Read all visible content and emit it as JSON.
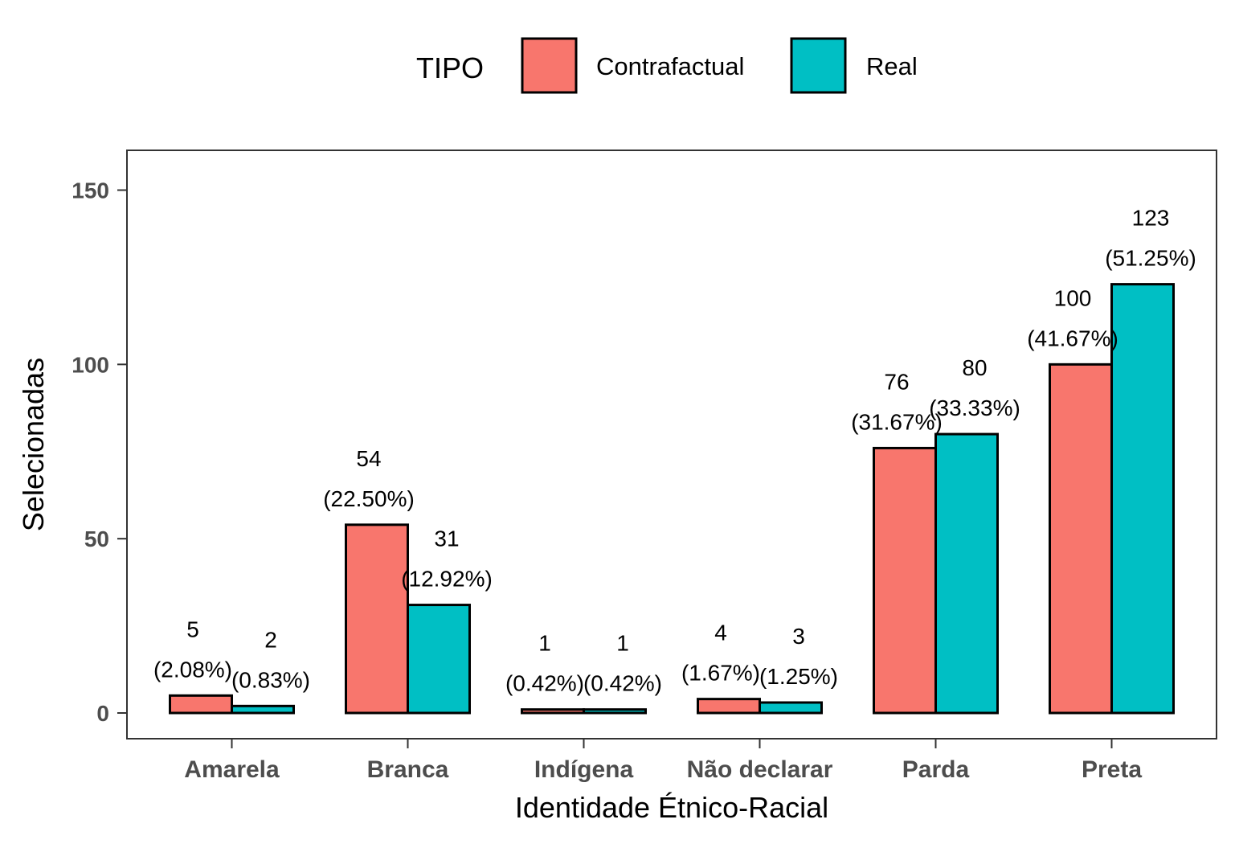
{
  "chart_data": {
    "type": "bar",
    "xlabel": "Identidade Étnico-Racial",
    "ylabel": "Selecionadas",
    "ylim": [
      0,
      160
    ],
    "yticks": [
      0,
      50,
      100,
      150
    ],
    "grid": false,
    "legend": {
      "title": "TIPO",
      "position": "top"
    },
    "categories": [
      "Amarela",
      "Branca",
      "Indígena",
      "Não declarar",
      "Parda",
      "Preta"
    ],
    "series": [
      {
        "name": "Contrafactual",
        "color": "#F8766D",
        "values": [
          5,
          54,
          1,
          4,
          76,
          100
        ],
        "percent_labels": [
          "(2.08%)",
          "(22.50%)",
          "(0.42%)",
          "(1.67%)",
          "(31.67%)",
          "(41.67%)"
        ]
      },
      {
        "name": "Real",
        "color": "#00BFC4",
        "values": [
          2,
          31,
          1,
          3,
          80,
          123
        ],
        "percent_labels": [
          "(0.83%)",
          "(12.92%)",
          "(0.42%)",
          "(1.25%)",
          "(33.33%)",
          "(51.25%)"
        ]
      }
    ]
  }
}
